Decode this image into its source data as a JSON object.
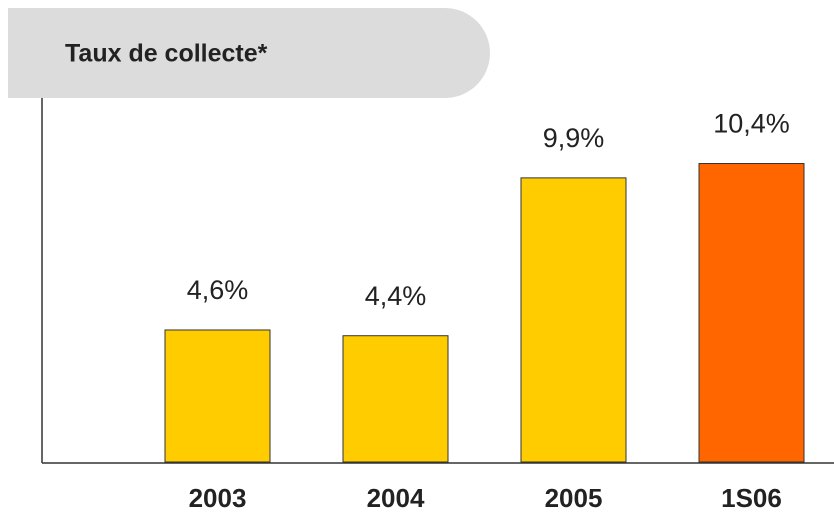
{
  "chart_data": {
    "type": "bar",
    "title": "Taux de collecte*",
    "categories": [
      "2003",
      "2004",
      "2005",
      "1S06"
    ],
    "values": [
      4.6,
      4.4,
      9.9,
      10.4
    ],
    "value_labels": [
      "4,6%",
      "4,4%",
      "9,9%",
      "10,4%"
    ],
    "colors": [
      "#ffcc00",
      "#ffcc00",
      "#ffcc00",
      "#ff6600"
    ]
  }
}
